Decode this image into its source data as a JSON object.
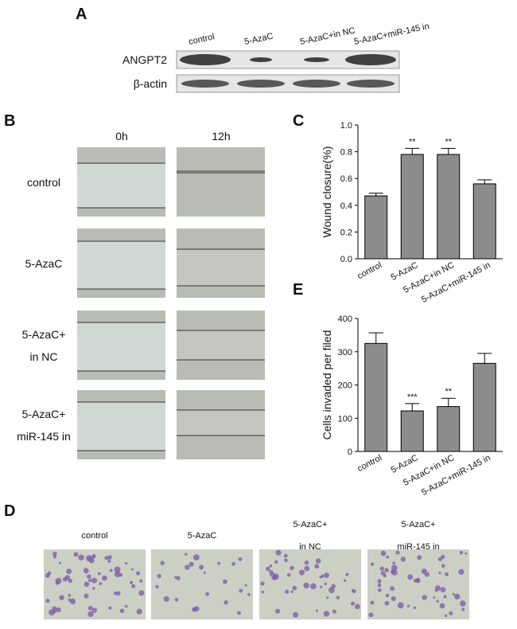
{
  "panel_labels": [
    "A",
    "B",
    "C",
    "D",
    "E"
  ],
  "blot": {
    "lanes": [
      "control",
      "5-AzaC",
      "5-AzaC+in NC",
      "5-AzaC+miR-145 in"
    ],
    "rows": [
      "ANGPT2",
      "β-actin"
    ]
  },
  "wound": {
    "times": [
      "0h",
      "12h"
    ],
    "groups": [
      [
        "control"
      ],
      [
        "5-AzaC"
      ],
      [
        "5-AzaC+",
        "in NC"
      ],
      [
        "5-AzaC+",
        "miR-145 in"
      ]
    ]
  },
  "invasion": {
    "groups": [
      [
        "control"
      ],
      [
        "5-AzaC"
      ],
      [
        "5-AzaC+",
        "in NC"
      ],
      [
        "5-AzaC+",
        "miR-145 in"
      ]
    ]
  },
  "chart_data": [
    {
      "type": "bar",
      "ylabel": "Wound closure(%)",
      "categories": [
        "control",
        "5-AzaC",
        "5-AzaC+in NC",
        "5-AzaC+miR-145 in"
      ],
      "values": [
        0.47,
        0.78,
        0.78,
        0.56
      ],
      "errors": [
        0.02,
        0.045,
        0.045,
        0.03
      ],
      "annotations": [
        null,
        "**",
        "**",
        null
      ],
      "color": "#8c8c8c",
      "ylim": [
        0,
        1
      ],
      "yticks": [
        {
          "value": 0,
          "label": "0.0"
        },
        0.2,
        0.4,
        0.6,
        0.8,
        {
          "value": 1,
          "label": "1.0"
        }
      ]
    },
    {
      "type": "bar",
      "ylabel": "Cells invaded per filed",
      "categories": [
        "control",
        "5-AzaC",
        "5-AzaC+in NC",
        "5-AzaC+miR-145 in"
      ],
      "values": [
        325,
        122,
        135,
        265
      ],
      "errors": [
        32,
        22,
        25,
        30
      ],
      "annotations": [
        null,
        "***",
        "**",
        null
      ],
      "color": "#8c8c8c",
      "ylim": [
        0,
        400
      ],
      "yticks": [
        0,
        100,
        200,
        300,
        400
      ]
    }
  ]
}
